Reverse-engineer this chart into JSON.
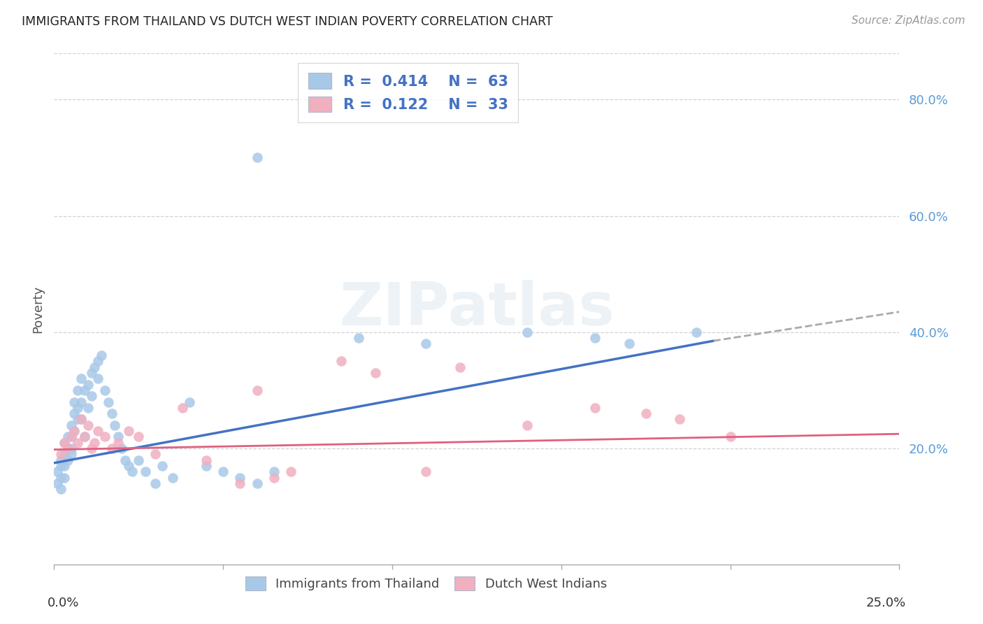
{
  "title": "IMMIGRANTS FROM THAILAND VS DUTCH WEST INDIAN POVERTY CORRELATION CHART",
  "source": "Source: ZipAtlas.com",
  "ylabel": "Poverty",
  "yticks": [
    "20.0%",
    "40.0%",
    "60.0%",
    "80.0%"
  ],
  "ytick_vals": [
    0.2,
    0.4,
    0.6,
    0.8
  ],
  "xlim": [
    0.0,
    0.25
  ],
  "ylim": [
    0.0,
    0.88
  ],
  "blue_color": "#a8c8e8",
  "pink_color": "#f0b0c0",
  "line_blue": "#4472c4",
  "line_pink": "#e06080",
  "line_dash_color": "#aaaaaa",
  "background": "#ffffff",
  "thailand_x": [
    0.001,
    0.001,
    0.002,
    0.002,
    0.002,
    0.002,
    0.003,
    0.003,
    0.003,
    0.003,
    0.004,
    0.004,
    0.004,
    0.005,
    0.005,
    0.005,
    0.005,
    0.006,
    0.006,
    0.006,
    0.007,
    0.007,
    0.007,
    0.008,
    0.008,
    0.008,
    0.009,
    0.009,
    0.01,
    0.01,
    0.011,
    0.011,
    0.012,
    0.013,
    0.013,
    0.014,
    0.015,
    0.016,
    0.017,
    0.018,
    0.019,
    0.02,
    0.021,
    0.022,
    0.023,
    0.025,
    0.027,
    0.03,
    0.032,
    0.035,
    0.04,
    0.045,
    0.05,
    0.055,
    0.06,
    0.065,
    0.09,
    0.11,
    0.14,
    0.16,
    0.17,
    0.19,
    0.06
  ],
  "thailand_y": [
    0.16,
    0.14,
    0.17,
    0.15,
    0.18,
    0.13,
    0.19,
    0.21,
    0.17,
    0.15,
    0.2,
    0.22,
    0.18,
    0.24,
    0.22,
    0.2,
    0.19,
    0.26,
    0.28,
    0.23,
    0.25,
    0.27,
    0.3,
    0.28,
    0.32,
    0.25,
    0.3,
    0.22,
    0.31,
    0.27,
    0.29,
    0.33,
    0.34,
    0.32,
    0.35,
    0.36,
    0.3,
    0.28,
    0.26,
    0.24,
    0.22,
    0.2,
    0.18,
    0.17,
    0.16,
    0.18,
    0.16,
    0.14,
    0.17,
    0.15,
    0.28,
    0.17,
    0.16,
    0.15,
    0.14,
    0.16,
    0.39,
    0.38,
    0.4,
    0.39,
    0.38,
    0.4,
    0.7
  ],
  "dutch_x": [
    0.002,
    0.003,
    0.004,
    0.005,
    0.006,
    0.007,
    0.008,
    0.009,
    0.01,
    0.011,
    0.012,
    0.013,
    0.015,
    0.017,
    0.019,
    0.022,
    0.025,
    0.03,
    0.038,
    0.045,
    0.06,
    0.07,
    0.085,
    0.095,
    0.11,
    0.12,
    0.14,
    0.16,
    0.185,
    0.2,
    0.055,
    0.065,
    0.175
  ],
  "dutch_y": [
    0.19,
    0.21,
    0.2,
    0.22,
    0.23,
    0.21,
    0.25,
    0.22,
    0.24,
    0.2,
    0.21,
    0.23,
    0.22,
    0.2,
    0.21,
    0.23,
    0.22,
    0.19,
    0.27,
    0.18,
    0.3,
    0.16,
    0.35,
    0.33,
    0.16,
    0.34,
    0.24,
    0.27,
    0.25,
    0.22,
    0.14,
    0.15,
    0.26
  ],
  "blue_line_x": [
    0.0,
    0.195
  ],
  "blue_line_y": [
    0.175,
    0.385
  ],
  "dash_line_x": [
    0.195,
    0.25
  ],
  "dash_line_y": [
    0.385,
    0.435
  ],
  "pink_line_x": [
    0.0,
    0.25
  ],
  "pink_line_y": [
    0.198,
    0.225
  ],
  "legend1_text": "R = 0.414   N = 63",
  "legend2_text": "R = 0.122   N = 33",
  "watermark": "ZIPatlas"
}
